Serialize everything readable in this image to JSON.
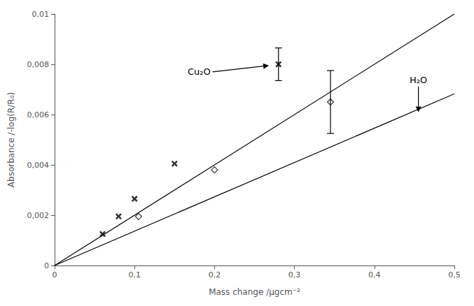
{
  "chart_data": {
    "type": "scatter",
    "xlabel": "Mass change /μgcm⁻²",
    "ylabel": "Absorbance /-log(R/R₀)",
    "xlim": [
      0,
      0.5
    ],
    "ylim": [
      0,
      0.01
    ],
    "xticks": [
      0,
      {
        "value": 0.1,
        "label": "0,1"
      },
      {
        "value": 0.2,
        "label": "0,2"
      },
      {
        "value": 0.3,
        "label": "0,3"
      },
      {
        "value": 0.4,
        "label": "0,4"
      },
      {
        "value": 0.5,
        "label": "0,5"
      }
    ],
    "yticks": [
      0,
      {
        "value": 0.002,
        "label": "0,002"
      },
      {
        "value": 0.004,
        "label": "0,004"
      },
      {
        "value": 0.006,
        "label": "0,006"
      },
      {
        "value": 0.008,
        "label": "0,008"
      },
      {
        "value": 0.01,
        "label": "0,01"
      }
    ],
    "grid": false,
    "series": [
      {
        "type": "line",
        "color": "#000000",
        "line_style": "solid",
        "x": [
          0,
          0.5
        ],
        "values": [
          0,
          0.01
        ]
      },
      {
        "type": "line",
        "color": "#000000",
        "line_style": "solid",
        "x": [
          0,
          0.5
        ],
        "values": [
          0,
          0.006825
        ]
      },
      {
        "type": "scatter",
        "marker": "x",
        "color": "#000000",
        "x": [
          0.06,
          0.08,
          0.1,
          0.15,
          0.28
        ],
        "values": [
          0.00125,
          0.00195,
          0.00265,
          0.00405,
          0.008
        ],
        "error_minus": [
          null,
          null,
          null,
          null,
          0.00065
        ],
        "error_plus": [
          null,
          null,
          null,
          null,
          0.00065
        ]
      },
      {
        "type": "scatter",
        "marker": "diamond",
        "color": "#000000",
        "x": [
          0.105,
          0.2,
          0.345
        ],
        "values": [
          0.00195,
          0.0038,
          0.0065
        ],
        "error_minus": [
          null,
          null,
          0.00125
        ],
        "error_plus": [
          null,
          null,
          0.00125
        ]
      }
    ],
    "annotations": [
      {
        "text": "Cu₂O",
        "x": 0.195,
        "y": 0.0077,
        "arrow_x": 0.268,
        "arrow_y": 0.00795
      },
      {
        "text": "H₂O",
        "x": 0.455,
        "y": 0.0072,
        "arrow_x": 0.455,
        "arrow_y": 0.0061
      }
    ]
  }
}
